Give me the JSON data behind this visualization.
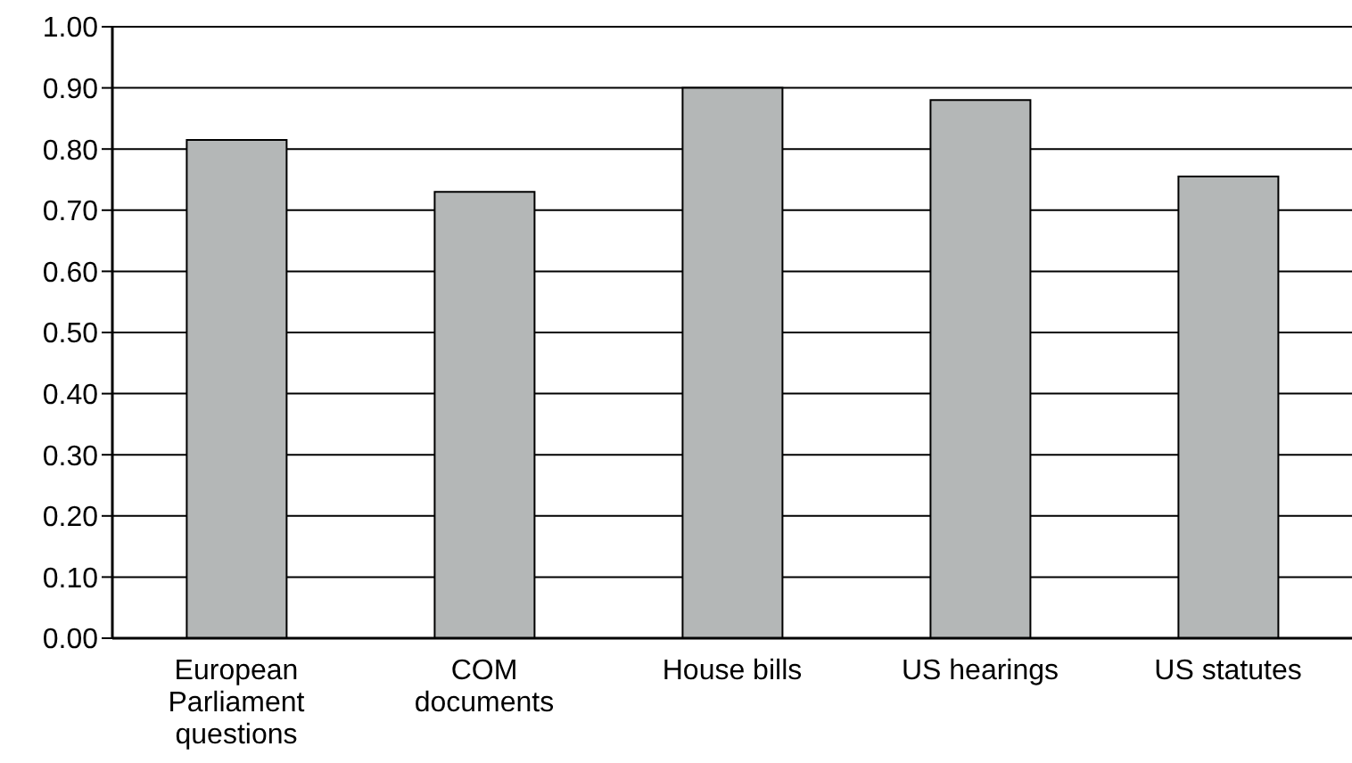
{
  "chart_data": {
    "type": "bar",
    "categories": [
      "European Parliament questions",
      "COM documents",
      "House bills",
      "US hearings",
      "US statutes"
    ],
    "values": [
      0.815,
      0.73,
      0.9,
      0.88,
      0.755
    ],
    "color": "#b4b7b7",
    "ylim": [
      0,
      1
    ],
    "yticks": [
      {
        "value": 0,
        "label": "0.00"
      },
      {
        "value": 0.1,
        "label": "0.10"
      },
      {
        "value": 0.2,
        "label": "0.20"
      },
      {
        "value": 0.3,
        "label": "0.30"
      },
      {
        "value": 0.4,
        "label": "0.40"
      },
      {
        "value": 0.5,
        "label": "0.50"
      },
      {
        "value": 0.6,
        "label": "0.60"
      },
      {
        "value": 0.7,
        "label": "0.70"
      },
      {
        "value": 0.8,
        "label": "0.80"
      },
      {
        "value": 0.9,
        "label": "0.90"
      },
      {
        "value": 1,
        "label": "1.00"
      }
    ],
    "grid": "y"
  }
}
